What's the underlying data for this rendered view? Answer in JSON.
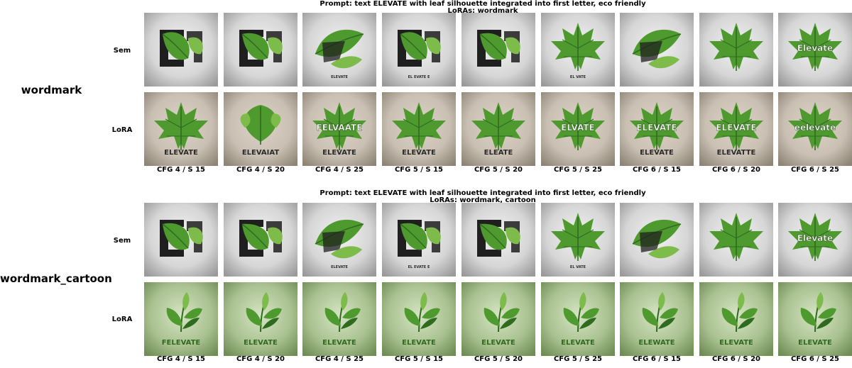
{
  "sections": [
    {
      "prompt_line1": "Prompt: text ELEVATE with leaf silhouette integrated into first letter, eco friendly",
      "prompt_line2": "LoRAs: wordmark",
      "label": "wordmark",
      "rows": [
        {
          "label": "Sem",
          "bg": "gray",
          "captions": [
            "",
            "",
            "ELEVATE",
            "EL EVATE E",
            "",
            "EL VATE",
            "",
            "",
            ""
          ],
          "overlays": [
            "",
            "",
            "",
            "",
            "",
            "",
            "",
            "",
            "Elevate"
          ],
          "motifs": [
            "letter",
            "letter",
            "leaf-letter",
            "letter",
            "letter",
            "maple",
            "leaf-letter",
            "maple",
            "maple"
          ]
        },
        {
          "label": "LoRA",
          "bg": "beige",
          "captions": [
            "ELEVATE",
            "ELEVAIAT",
            "ELEVATE",
            "ELEVATE",
            "ELEATE",
            "",
            "ELEVATE",
            "ELEVATTE",
            ""
          ],
          "overlays": [
            "",
            "",
            "FELVAATE",
            "",
            "",
            "ELVATE",
            "ELEVATE",
            "ELEVATE",
            "eelevate"
          ],
          "motifs": [
            "maple",
            "leaf",
            "maple",
            "maple",
            "maple",
            "maple",
            "maple",
            "maple",
            "maple"
          ]
        }
      ]
    },
    {
      "prompt_line1": "Prompt: text ELEVATE with leaf silhouette integrated into first letter, eco friendly",
      "prompt_line2": "LoRAs: wordmark, cartoon",
      "label": "wordmark_cartoon",
      "rows": [
        {
          "label": "Sem",
          "bg": "gray",
          "captions": [
            "",
            "",
            "ELEVATE",
            "EL EVATE E",
            "",
            "EL VATE",
            "",
            "",
            ""
          ],
          "overlays": [
            "",
            "",
            "",
            "",
            "",
            "",
            "",
            "",
            "Elevate"
          ],
          "motifs": [
            "letter",
            "letter",
            "leaf-letter",
            "letter",
            "letter",
            "maple",
            "leaf-letter",
            "maple",
            "maple"
          ]
        },
        {
          "label": "LoRA",
          "bg": "green",
          "captions": [
            "FELEVATE",
            "ELEVATE",
            "ELEVATE",
            "ELEVATE",
            "ELEVATE",
            "ELEVATE",
            "ELEWATE",
            "ELEVATE",
            "ELEVATE"
          ],
          "overlays": [
            "",
            "",
            "",
            "",
            "",
            "",
            "",
            "",
            ""
          ],
          "motifs": [
            "sprig",
            "sprig",
            "sprig",
            "sprig",
            "sprig",
            "sprig",
            "sprig",
            "sprig",
            "sprig"
          ]
        }
      ]
    }
  ],
  "columns": [
    "CFG 4 / S 15",
    "CFG 4 / S 20",
    "CFG 4 / S 25",
    "CFG 5 / S 15",
    "CFG 5 / S 20",
    "CFG 5 / S 25",
    "CFG 6 / S 15",
    "CFG 6 / S 20",
    "CFG 6 / S 25"
  ],
  "colors": {
    "leaf_dark": "#2e6b1f",
    "leaf_mid": "#4f9a2f",
    "leaf_light": "#7dbb4a",
    "gray_bg": "#d6d6d6",
    "beige_bg": "#c9bfb2",
    "green_bg": "#a9c190",
    "letter": "#1f1f1f"
  }
}
